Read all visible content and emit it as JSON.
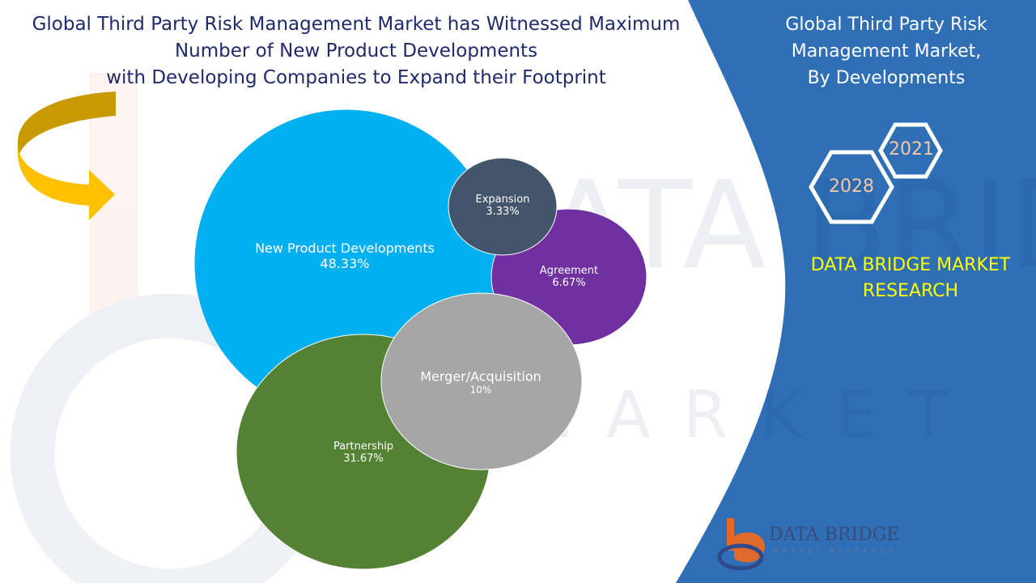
{
  "title_lines": [
    "Global Third Party Risk Management Market has Witnessed Maximum",
    "Number of New Product Developments",
    "with Developing Companies to Expand their Footprint"
  ],
  "side_title_lines": [
    "Global Third Party Risk",
    "Management Market,",
    "By Developments"
  ],
  "years": {
    "start": "2021",
    "end": "2028"
  },
  "brand": {
    "line1": "DATA BRIDGE MARKET",
    "line2": "RESEARCH",
    "logo_name": "DATA BRIDGE",
    "logo_tagline": "MARKET RESEARCH"
  },
  "colors": {
    "panel": "#2f6fb5",
    "title": "#1f2a6b",
    "brand_yellow": "#ffff00",
    "arrow": "#f2b200"
  },
  "chart_data": {
    "type": "bubble",
    "title": "",
    "series": [
      {
        "label": "New Product Developments",
        "value_text": "48.33%",
        "value": 48.33,
        "color": "#00b0f0"
      },
      {
        "label": "Partnership",
        "value_text": "31.67%",
        "value": 31.67,
        "color": "#548235"
      },
      {
        "label": "Merger/Acquisition",
        "value_text": "10%",
        "value": 10,
        "color": "#a6a6a6"
      },
      {
        "label": "Agreement",
        "value_text": "6.67%",
        "value": 6.67,
        "color": "#7030a0"
      },
      {
        "label": "Expansion",
        "value_text": "3.33%",
        "value": 3.33,
        "color": "#44546a"
      }
    ]
  }
}
